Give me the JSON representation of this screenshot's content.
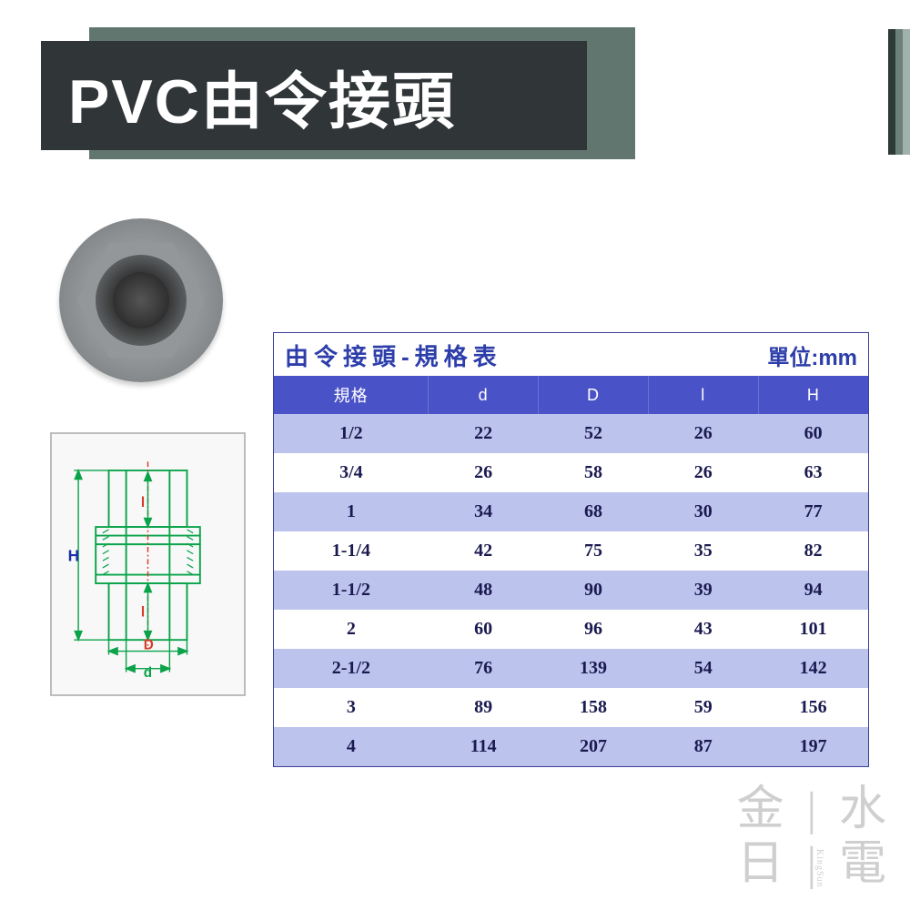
{
  "header": {
    "title": "PVC由令接頭",
    "title_color": "#ffffff",
    "bar_color": "#627670",
    "dark_color": "#303538"
  },
  "stripe_colors": [
    "#2d3a36",
    "#6b8078",
    "#9fb2ab"
  ],
  "table": {
    "title": "由令接頭-規格表",
    "unit_label": "單位:mm",
    "columns": [
      "規格",
      "d",
      "D",
      "l",
      "H"
    ],
    "rows": [
      [
        "1/2",
        "22",
        "52",
        "26",
        "60"
      ],
      [
        "3/4",
        "26",
        "58",
        "26",
        "63"
      ],
      [
        "1",
        "34",
        "68",
        "30",
        "77"
      ],
      [
        "1-1/4",
        "42",
        "75",
        "35",
        "82"
      ],
      [
        "1-1/2",
        "48",
        "90",
        "39",
        "94"
      ],
      [
        "2",
        "60",
        "96",
        "43",
        "101"
      ],
      [
        "2-1/2",
        "76",
        "139",
        "54",
        "142"
      ],
      [
        "3",
        "89",
        "158",
        "59",
        "156"
      ],
      [
        "4",
        "114",
        "207",
        "87",
        "197"
      ]
    ],
    "header_bg": "#4a52c7",
    "row_odd_bg": "#bcc3ec",
    "row_even_bg": "#ffffff",
    "text_color": "#1a1a50",
    "title_color": "#2d3eaa"
  },
  "diagram": {
    "labels": {
      "H": "H",
      "l_top": "l",
      "l_bot": "l",
      "D": "D",
      "d": "d"
    },
    "line_color": "#0aa34a",
    "center_line_color": "#d63a2a",
    "text_color": "#1a2ea8"
  },
  "watermark": {
    "line1": "金 | 水",
    "line2": "日 | 電",
    "sub": "KingSun"
  }
}
